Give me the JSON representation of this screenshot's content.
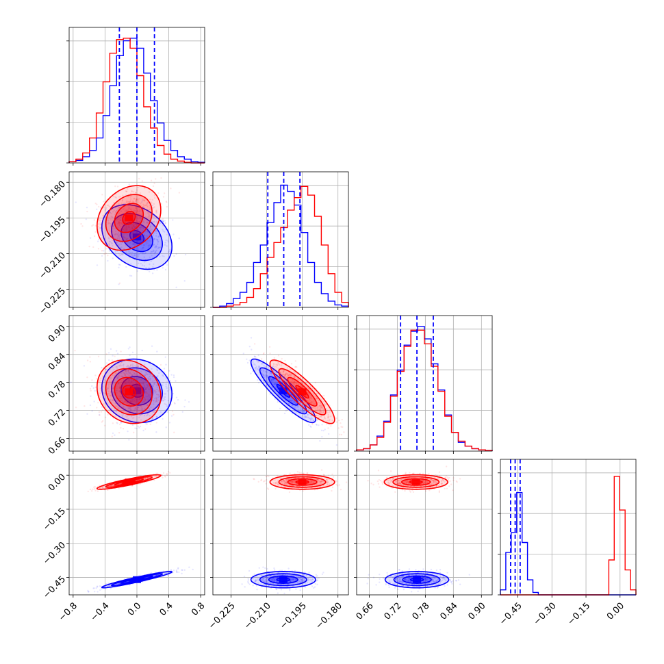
{
  "chart_data": {
    "type": "corner",
    "title": "",
    "parameters": [
      {
        "name": "",
        "range": [
          -0.85,
          0.85
        ],
        "ticks": [
          -0.8,
          -0.4,
          0.0,
          0.4,
          0.8
        ],
        "tick_labels": [
          "−0.8",
          "−0.4",
          "0.0",
          "0.4",
          "0.8"
        ]
      },
      {
        "name": "",
        "range": [
          -0.2326,
          -0.1756
        ],
        "ticks": [
          -0.225,
          -0.21,
          -0.195,
          -0.18
        ],
        "tick_labels": [
          "−0.225",
          "−0.210",
          "−0.195",
          "−0.180"
        ]
      },
      {
        "name": "",
        "range": [
          0.633,
          0.923
        ],
        "ticks": [
          0.66,
          0.72,
          0.78,
          0.84,
          0.9
        ],
        "tick_labels": [
          "0.66",
          "0.72",
          "0.78",
          "0.84",
          "0.90"
        ]
      },
      {
        "name": "",
        "range": [
          -0.527,
          0.07
        ],
        "ticks": [
          -0.45,
          -0.3,
          -0.15,
          0.0
        ],
        "tick_labels": [
          "−0.45",
          "−0.30",
          "−0.15",
          "0.00"
        ]
      }
    ],
    "series": [
      {
        "name": "",
        "color": "#0000ff",
        "means": [
          0.0,
          -0.203,
          0.762,
          -0.46
        ],
        "stds": [
          0.22,
          0.0068,
          0.034,
          0.018
        ],
        "quantile_lines": [
          [
            -0.22,
            0.0,
            0.22
          ],
          [
            -0.2095,
            -0.2028,
            -0.196
          ],
          [
            0.727,
            0.762,
            0.797
          ],
          [
            -0.482,
            -0.462,
            -0.44
          ]
        ]
      },
      {
        "name": "",
        "color": "#ff0000",
        "means": [
          -0.1,
          -0.195,
          0.76,
          -0.03
        ],
        "stds": [
          0.2,
          0.0068,
          0.034,
          0.016
        ]
      }
    ],
    "histograms": {
      "p0_blue": [
        0.01,
        0.02,
        0.05,
        0.1,
        0.2,
        0.38,
        0.62,
        0.86,
        0.98,
        1.0,
        0.92,
        0.72,
        0.5,
        0.32,
        0.18,
        0.1,
        0.05,
        0.03,
        0.01,
        0.005
      ],
      "p0_red": [
        0.01,
        0.03,
        0.08,
        0.2,
        0.4,
        0.65,
        0.88,
        0.99,
        1.0,
        0.92,
        0.7,
        0.45,
        0.28,
        0.14,
        0.07,
        0.03,
        0.015,
        0.005,
        0.0,
        0.0
      ],
      "p1_blue": [
        0.0,
        0.01,
        0.03,
        0.07,
        0.12,
        0.2,
        0.36,
        0.5,
        0.68,
        0.84,
        0.98,
        0.93,
        0.82,
        0.6,
        0.36,
        0.2,
        0.11,
        0.05,
        0.02,
        0.01
      ],
      "p1_red": [
        0.0,
        0.0,
        0.01,
        0.02,
        0.04,
        0.08,
        0.15,
        0.27,
        0.4,
        0.52,
        0.64,
        0.78,
        0.88,
        0.97,
        0.9,
        0.73,
        0.5,
        0.27,
        0.12,
        0.04
      ],
      "p2_blue": [
        0.01,
        0.02,
        0.05,
        0.12,
        0.24,
        0.45,
        0.65,
        0.85,
        0.96,
        1.0,
        0.9,
        0.7,
        0.49,
        0.29,
        0.15,
        0.07,
        0.04,
        0.02,
        0.01,
        0.005
      ],
      "p2_red": [
        0.01,
        0.02,
        0.05,
        0.11,
        0.23,
        0.44,
        0.64,
        0.84,
        0.97,
        0.97,
        0.86,
        0.68,
        0.48,
        0.28,
        0.15,
        0.08,
        0.04,
        0.02,
        0.01,
        0.005
      ],
      "p3_blue": [
        0.04,
        0.34,
        0.5,
        0.82,
        0.42,
        0.12,
        0.02,
        0.0,
        0.0,
        0.0,
        0.0,
        0.0,
        0.0,
        0.0,
        0.0,
        0.0,
        0.0,
        0.0,
        0.0,
        0.0,
        0.0,
        0.0,
        0.0,
        0.0,
        0.0
      ],
      "p3_red": [
        0.0,
        0.0,
        0.0,
        0.0,
        0.0,
        0.0,
        0.0,
        0.0,
        0.0,
        0.0,
        0.0,
        0.0,
        0.0,
        0.0,
        0.0,
        0.0,
        0.0,
        0.0,
        0.0,
        0.0,
        0.28,
        0.95,
        0.68,
        0.2,
        0.04
      ]
    },
    "correlations": {
      "blue": {
        "0-1": -0.3,
        "0-2": -0.1,
        "0-3": 0.95,
        "1-2": -0.9,
        "1-3": 0.0,
        "2-3": 0.0
      },
      "red": {
        "0-1": 0.25,
        "0-2": -0.15,
        "0-3": 0.9,
        "1-2": -0.88,
        "1-3": 0.0,
        "2-3": 0.0
      }
    },
    "grid": true,
    "legend": "none"
  }
}
